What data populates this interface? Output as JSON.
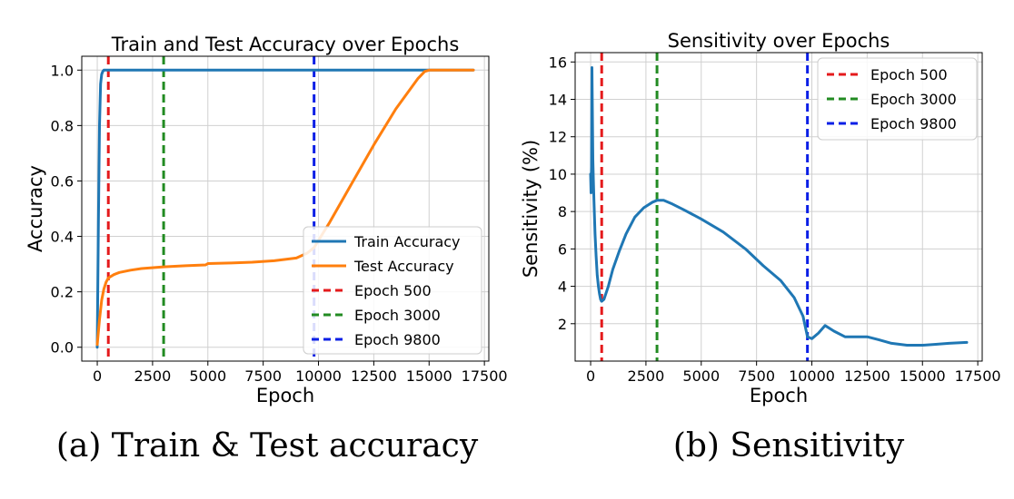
{
  "colors": {
    "train": "#1f77b4",
    "test": "#ff7f0e",
    "sensitivity": "#1f77b4",
    "epoch500": "#e41a1c",
    "epoch3000": "#228b22",
    "epoch9800": "#0a1fe6",
    "grid": "#d0d0d0"
  },
  "chart_data": [
    {
      "type": "line",
      "title": "Train and Test Accuracy over Epochs",
      "xlabel": "Epoch",
      "ylabel": "Accuracy",
      "xlim": [
        -700,
        17700
      ],
      "ylim": [
        -0.05,
        1.05
      ],
      "xticks": [
        0,
        2500,
        5000,
        7500,
        10000,
        12500,
        15000,
        17500
      ],
      "xtick_labels": [
        "0",
        "2500",
        "5000",
        "7500",
        "10000",
        "12500",
        "15000",
        "17500"
      ],
      "yticks": [
        0.0,
        0.2,
        0.4,
        0.6,
        0.8,
        1.0
      ],
      "ytick_labels": [
        "0.0",
        "0.2",
        "0.4",
        "0.6",
        "0.8",
        "1.0"
      ],
      "grid": true,
      "legend_position": "lower-right",
      "series": [
        {
          "name": "Train Accuracy",
          "color_key": "train",
          "x": [
            0,
            50,
            100,
            150,
            200,
            250,
            300,
            400,
            500,
            1000,
            5000,
            10000,
            15000,
            17000
          ],
          "y": [
            0.0,
            0.45,
            0.8,
            0.95,
            0.985,
            0.995,
            1.0,
            1.0,
            1.0,
            1.0,
            1.0,
            1.0,
            1.0,
            1.0
          ]
        },
        {
          "name": "Test Accuracy",
          "color_key": "test",
          "x": [
            0,
            100,
            200,
            300,
            400,
            500,
            750,
            1000,
            1500,
            2000,
            3000,
            4000,
            4900,
            5000,
            6000,
            7000,
            8000,
            9000,
            9500,
            9800,
            10500,
            11500,
            12500,
            13500,
            14500,
            14800,
            15000,
            16000,
            17000
          ],
          "y": [
            0.01,
            0.1,
            0.17,
            0.21,
            0.235,
            0.25,
            0.262,
            0.27,
            0.278,
            0.284,
            0.29,
            0.294,
            0.297,
            0.302,
            0.304,
            0.307,
            0.312,
            0.322,
            0.34,
            0.36,
            0.45,
            0.59,
            0.73,
            0.86,
            0.97,
            0.995,
            1.0,
            1.0,
            1.0
          ]
        }
      ],
      "vlines": [
        {
          "name": "Epoch 500",
          "x": 500,
          "color_key": "epoch500"
        },
        {
          "name": "Epoch 3000",
          "x": 3000,
          "color_key": "epoch3000"
        },
        {
          "name": "Epoch 9800",
          "x": 9800,
          "color_key": "epoch9800"
        }
      ],
      "caption": "(a) Train & Test accuracy"
    },
    {
      "type": "line",
      "title": "Sensitivity over Epochs",
      "xlabel": "Epoch",
      "ylabel": "Sensitivity (%)",
      "xlim": [
        -700,
        17700
      ],
      "ylim": [
        0.0,
        16.5
      ],
      "xticks": [
        0,
        2500,
        5000,
        7500,
        10000,
        12500,
        15000,
        17500
      ],
      "xtick_labels": [
        "0",
        "2500",
        "5000",
        "7500",
        "10000",
        "12500",
        "15000",
        "17500"
      ],
      "yticks": [
        2,
        4,
        6,
        8,
        10,
        12,
        14,
        16
      ],
      "ytick_labels": [
        "2",
        "4",
        "6",
        "8",
        "10",
        "12",
        "14",
        "16"
      ],
      "grid": true,
      "legend_position": "top-right",
      "series": [
        {
          "name": "Sensitivity",
          "color_key": "sensitivity",
          "x": [
            0,
            20,
            40,
            60,
            80,
            100,
            120,
            150,
            200,
            250,
            300,
            350,
            400,
            450,
            500,
            600,
            800,
            1000,
            1300,
            1600,
            2000,
            2400,
            2800,
            3000,
            3300,
            3700,
            4200,
            5000,
            6000,
            7000,
            7800,
            8600,
            9200,
            9600,
            9800,
            10000,
            10300,
            10600,
            11000,
            11500,
            12000,
            12500,
            13000,
            13600,
            14300,
            15000,
            15600,
            16200,
            17000
          ],
          "y": [
            10.0,
            9.0,
            10.4,
            15.7,
            13.2,
            10.8,
            9.8,
            8.6,
            6.8,
            5.6,
            4.6,
            4.0,
            3.6,
            3.3,
            3.2,
            3.3,
            4.0,
            4.9,
            5.9,
            6.8,
            7.7,
            8.2,
            8.5,
            8.6,
            8.6,
            8.4,
            8.1,
            7.6,
            6.9,
            6.0,
            5.1,
            4.3,
            3.4,
            2.4,
            1.3,
            1.2,
            1.5,
            1.9,
            1.6,
            1.3,
            1.3,
            1.3,
            1.15,
            0.95,
            0.85,
            0.85,
            0.9,
            0.95,
            1.0
          ]
        }
      ],
      "vlines": [
        {
          "name": "Epoch 500",
          "x": 500,
          "color_key": "epoch500"
        },
        {
          "name": "Epoch 3000",
          "x": 3000,
          "color_key": "epoch3000"
        },
        {
          "name": "Epoch 9800",
          "x": 9800,
          "color_key": "epoch9800"
        }
      ],
      "caption": "(b) Sensitivity"
    }
  ]
}
